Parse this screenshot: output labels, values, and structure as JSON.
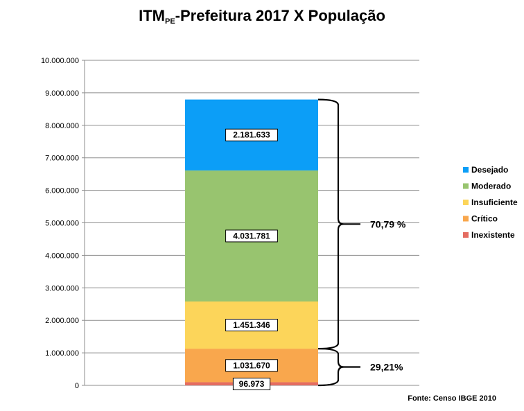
{
  "chart_data": {
    "type": "bar",
    "stacked": true,
    "title_main": "ITM",
    "title_sub": "PE",
    "title_rest": "-Prefeitura 2017 X População",
    "categories": [
      ""
    ],
    "ylim": [
      0,
      10000000
    ],
    "yticks": [
      0,
      1000000,
      2000000,
      3000000,
      4000000,
      5000000,
      6000000,
      7000000,
      8000000,
      9000000,
      10000000
    ],
    "ytick_labels": [
      "0",
      "1.000.000",
      "2.000.000",
      "3.000.000",
      "4.000.000",
      "5.000.000",
      "6.000.000",
      "7.000.000",
      "8.000.000",
      "9.000.000",
      "10.000.000"
    ],
    "grid": true,
    "legend_position": "right",
    "series": [
      {
        "name": "Inexistente",
        "values": [
          96973
        ],
        "label": "96.973",
        "color": "#e46c61"
      },
      {
        "name": "Crítico",
        "values": [
          1031670
        ],
        "label": "1.031.670",
        "color": "#f9a74d"
      },
      {
        "name": "Insuficiente",
        "values": [
          1451346
        ],
        "label": "1.451.346",
        "color": "#fcd55a"
      },
      {
        "name": "Moderado",
        "values": [
          4031781
        ],
        "label": "4.031.781",
        "color": "#98c46f"
      },
      {
        "name": "Desejado",
        "values": [
          2181633
        ],
        "label": "2.181.633",
        "color": "#0c9ef7"
      }
    ],
    "legend_order": [
      "Desejado",
      "Moderado",
      "Insuficiente",
      "Crítico",
      "Inexistente"
    ],
    "annotations": [
      {
        "text": "70,79 %",
        "from_series": 2,
        "to_series": 4
      },
      {
        "text": "29,21%",
        "from_series": 0,
        "to_series": 1
      }
    ],
    "source": "Fonte: Censo IBGE 2010"
  }
}
